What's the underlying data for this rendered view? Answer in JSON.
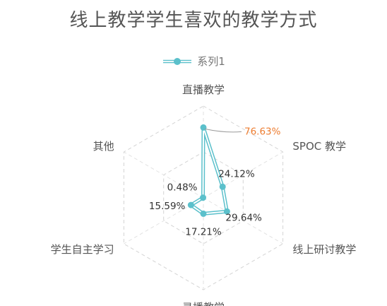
{
  "chart_data": {
    "type": "radar",
    "title": "线上教学学生喜欢的教学方式",
    "legend_position": "top",
    "grid": true,
    "rmax": 1.0,
    "categories": [
      "直播教学",
      "SPOC 教学",
      "线上研讨教学",
      "录播教学",
      "学生自主学习",
      "其他"
    ],
    "series": [
      {
        "name": "系列1",
        "values": [
          0.7663,
          0.2412,
          0.2964,
          0.1721,
          0.1559,
          0.0048
        ],
        "labels": [
          "76.63%",
          "24.12%",
          "29.64%",
          "17.21%",
          "15.59%",
          "0.48%"
        ],
        "color": "#5BC0CB",
        "highlight_color": "#ED7D31",
        "highlight_index": 0
      }
    ]
  }
}
